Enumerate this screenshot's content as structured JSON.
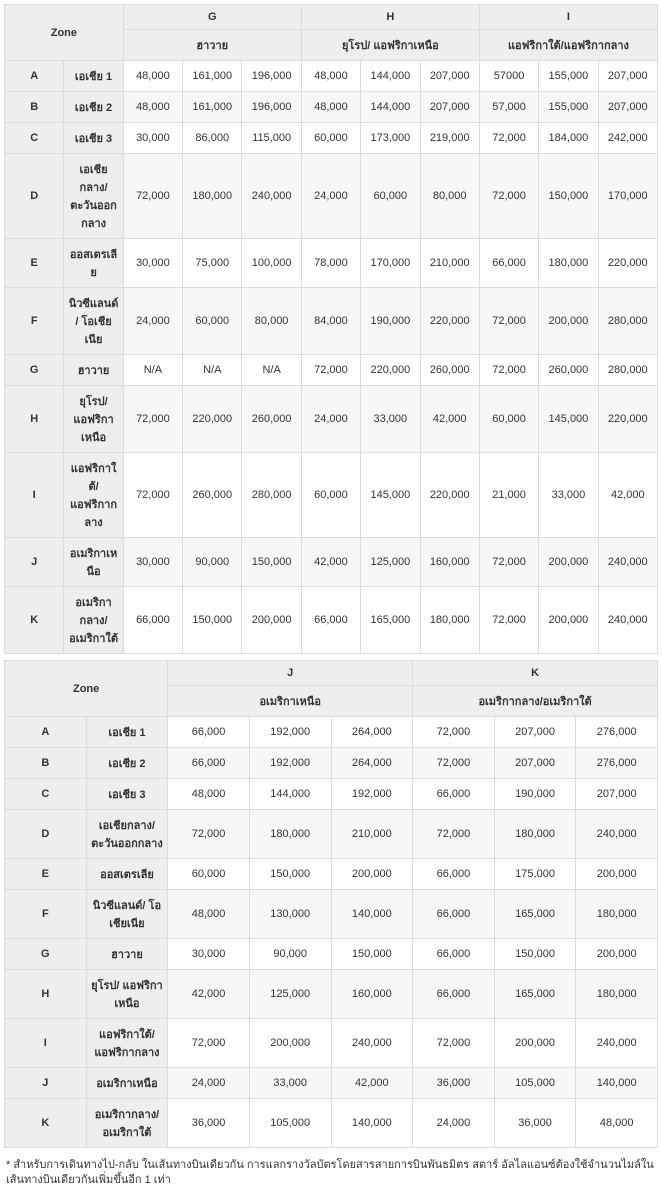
{
  "zone_header": "Zone",
  "footnote": "* สำหรับการเดินทางไป-กลับ ในเส้นทางบินเดียวกัน การแลกรางวัลบัตรโดยสารสายการบินพันธมิตร สตาร์ อัลไลแอนซ์ต้องใช้จำนวนไมล์ในเส้นทางบินเดียวกันเพิ่มขึ้นอีก 1 เท่า",
  "table1": {
    "groups": [
      {
        "letter": "G",
        "name": "ฮาวาย"
      },
      {
        "letter": "H",
        "name": "ยุโรป/ แอฟริกาเหนือ"
      },
      {
        "letter": "I",
        "name": "แอฟริกาใต้/แอฟริกากลาง"
      }
    ],
    "rows": [
      {
        "letter": "A",
        "name": "เอเชีย 1",
        "v": [
          "48,000",
          "161,000",
          "196,000",
          "48,000",
          "144,000",
          "207,000",
          "57000",
          "155,000",
          "207,000"
        ]
      },
      {
        "letter": "B",
        "name": "เอเชีย 2",
        "v": [
          "48,000",
          "161,000",
          "196,000",
          "48,000",
          "144,000",
          "207,000",
          "57,000",
          "155,000",
          "207,000"
        ]
      },
      {
        "letter": "C",
        "name": "เอเชีย 3",
        "v": [
          "30,000",
          "86,000",
          "115,000",
          "60,000",
          "173,000",
          "219,000",
          "72,000",
          "184,000",
          "242,000"
        ]
      },
      {
        "letter": "D",
        "name": "เอเชียกลาง/ ตะวันออกกลาง",
        "v": [
          "72,000",
          "180,000",
          "240,000",
          "24,000",
          "60,000",
          "80,000",
          "72,000",
          "150,000",
          "170,000"
        ]
      },
      {
        "letter": "E",
        "name": "ออสเตรเลีย",
        "v": [
          "30,000",
          "75,000",
          "100,000",
          "78,000",
          "170,000",
          "210,000",
          "66,000",
          "180,000",
          "220,000"
        ]
      },
      {
        "letter": "F",
        "name": "นิวซีแลนด์/ โอเชียเนีย",
        "v": [
          "24,000",
          "60,000",
          "80,000",
          "84,000",
          "190,000",
          "220,000",
          "72,000",
          "200,000",
          "280,000"
        ]
      },
      {
        "letter": "G",
        "name": "ฮาวาย",
        "v": [
          "N/A",
          "N/A",
          "N/A",
          "72,000",
          "220,000",
          "260,000",
          "72,000",
          "260,000",
          "280,000"
        ]
      },
      {
        "letter": "H",
        "name": "ยุโรป/ แอฟริกาเหนือ",
        "v": [
          "72,000",
          "220,000",
          "260,000",
          "24,000",
          "33,000",
          "42,000",
          "60,000",
          "145,000",
          "220,000"
        ]
      },
      {
        "letter": "I",
        "name": "แอฟริกาใต้/แอฟริกากลาง",
        "v": [
          "72,000",
          "260,000",
          "280,000",
          "60,000",
          "145,000",
          "220,000",
          "21,000",
          "33,000",
          "42,000"
        ]
      },
      {
        "letter": "J",
        "name": "อเมริกาเหนือ",
        "v": [
          "30,000",
          "90,000",
          "150,000",
          "42,000",
          "125,000",
          "160,000",
          "72,000",
          "200,000",
          "240,000"
        ]
      },
      {
        "letter": "K",
        "name": "อเมริกากลาง/อเมริกาใต้",
        "v": [
          "66,000",
          "150,000",
          "200,000",
          "66,000",
          "165,000",
          "180,000",
          "72,000",
          "200,000",
          "240,000"
        ]
      }
    ]
  },
  "table2": {
    "groups": [
      {
        "letter": "J",
        "name": "อเมริกาเหนือ"
      },
      {
        "letter": "K",
        "name": "อเมริกากลาง/อเมริกาใต้"
      }
    ],
    "rows": [
      {
        "letter": "A",
        "name": "เอเชีย 1",
        "v": [
          "66,000",
          "192,000",
          "264,000",
          "72,000",
          "207,000",
          "276,000"
        ]
      },
      {
        "letter": "B",
        "name": "เอเชีย 2",
        "v": [
          "66,000",
          "192,000",
          "264,000",
          "72,000",
          "207,000",
          "276,000"
        ]
      },
      {
        "letter": "C",
        "name": "เอเชีย 3",
        "v": [
          "48,000",
          "144,000",
          "192,000",
          "66,000",
          "190,000",
          "207,000"
        ]
      },
      {
        "letter": "D",
        "name": "เอเชียกลาง/ ตะวันออกกลาง",
        "v": [
          "72,000",
          "180,000",
          "210,000",
          "72,000",
          "180,000",
          "240,000"
        ]
      },
      {
        "letter": "E",
        "name": "ออสเตรเลีย",
        "v": [
          "60,000",
          "150,000",
          "200,000",
          "66,000",
          "175,000",
          "200,000"
        ]
      },
      {
        "letter": "F",
        "name": "นิวซีแลนด์/ โอเชียเนีย",
        "v": [
          "48,000",
          "130,000",
          "140,000",
          "66,000",
          "165,000",
          "180,000"
        ]
      },
      {
        "letter": "G",
        "name": "ฮาวาย",
        "v": [
          "30,000",
          "90,000",
          "150,000",
          "66,000",
          "150,000",
          "200,000"
        ]
      },
      {
        "letter": "H",
        "name": "ยุโรป/ แอฟริกาเหนือ",
        "v": [
          "42,000",
          "125,000",
          "160,000",
          "66,000",
          "165,000",
          "180,000"
        ]
      },
      {
        "letter": "I",
        "name": "แอฟริกาใต้/แอฟริกากลาง",
        "v": [
          "72,000",
          "200,000",
          "240,000",
          "72,000",
          "200,000",
          "240,000"
        ]
      },
      {
        "letter": "J",
        "name": "อเมริกาเหนือ",
        "v": [
          "24,000",
          "33,000",
          "42,000",
          "36,000",
          "105,000",
          "140,000"
        ]
      },
      {
        "letter": "K",
        "name": "อเมริกากลาง/อเมริกาใต้",
        "v": [
          "36,000",
          "105,000",
          "140,000",
          "24,000",
          "36,000",
          "48,000"
        ]
      }
    ]
  }
}
